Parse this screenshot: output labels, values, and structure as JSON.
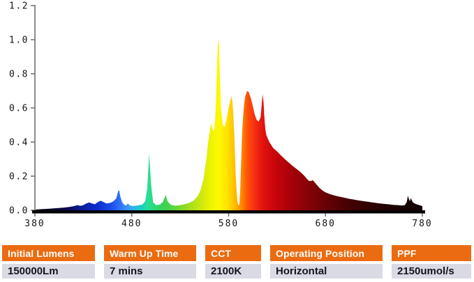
{
  "chart_data": {
    "type": "area",
    "title": "",
    "xlabel": "",
    "ylabel": "",
    "xlim": [
      380,
      780
    ],
    "ylim": [
      0,
      1.2
    ],
    "grid": false,
    "legend": false,
    "x_ticks": [
      "380",
      "480",
      "580",
      "680",
      "780"
    ],
    "y_ticks": [
      "0.0",
      "0.2",
      "0.4",
      "0.6",
      "0.8",
      "1.0",
      "1.2"
    ],
    "points": [
      [
        380,
        0.004
      ],
      [
        388,
        0.007
      ],
      [
        396,
        0.01
      ],
      [
        404,
        0.013
      ],
      [
        410,
        0.016
      ],
      [
        416,
        0.02
      ],
      [
        420,
        0.024
      ],
      [
        424,
        0.03
      ],
      [
        427,
        0.026
      ],
      [
        430,
        0.03
      ],
      [
        433,
        0.04
      ],
      [
        436,
        0.046
      ],
      [
        439,
        0.04
      ],
      [
        442,
        0.036
      ],
      [
        445,
        0.048
      ],
      [
        448,
        0.056
      ],
      [
        451,
        0.048
      ],
      [
        454,
        0.04
      ],
      [
        458,
        0.044
      ],
      [
        461,
        0.052
      ],
      [
        464,
        0.07
      ],
      [
        466,
        0.112
      ],
      [
        467,
        0.118
      ],
      [
        468,
        0.085
      ],
      [
        470,
        0.048
      ],
      [
        472,
        0.034
      ],
      [
        474,
        0.028
      ],
      [
        476,
        0.04
      ],
      [
        478,
        0.028
      ],
      [
        481,
        0.025
      ],
      [
        486,
        0.028
      ],
      [
        491,
        0.034
      ],
      [
        494,
        0.055
      ],
      [
        496,
        0.13
      ],
      [
        498,
        0.33
      ],
      [
        500,
        0.15
      ],
      [
        502,
        0.048
      ],
      [
        505,
        0.03
      ],
      [
        509,
        0.034
      ],
      [
        512,
        0.048
      ],
      [
        514,
        0.075
      ],
      [
        515,
        0.09
      ],
      [
        517,
        0.052
      ],
      [
        520,
        0.034
      ],
      [
        524,
        0.027
      ],
      [
        529,
        0.029
      ],
      [
        534,
        0.035
      ],
      [
        539,
        0.043
      ],
      [
        544,
        0.057
      ],
      [
        548,
        0.083
      ],
      [
        551,
        0.118
      ],
      [
        554,
        0.182
      ],
      [
        557,
        0.3
      ],
      [
        559,
        0.405
      ],
      [
        561,
        0.48
      ],
      [
        562,
        0.51
      ],
      [
        563,
        0.49
      ],
      [
        564,
        0.468
      ],
      [
        565,
        0.47
      ],
      [
        566,
        0.52
      ],
      [
        567,
        0.65
      ],
      [
        568,
        0.85
      ],
      [
        569,
        1.0
      ],
      [
        570,
        0.965
      ],
      [
        571,
        0.78
      ],
      [
        572,
        0.6
      ],
      [
        574,
        0.5
      ],
      [
        576,
        0.488
      ],
      [
        578,
        0.54
      ],
      [
        580,
        0.6
      ],
      [
        582,
        0.65
      ],
      [
        583,
        0.668
      ],
      [
        584,
        0.63
      ],
      [
        585,
        0.545
      ],
      [
        586,
        0.42
      ],
      [
        587,
        0.25
      ],
      [
        588,
        0.13
      ],
      [
        589,
        0.05
      ],
      [
        590,
        0.03
      ],
      [
        591,
        0.032
      ],
      [
        592,
        0.12
      ],
      [
        593,
        0.3
      ],
      [
        594,
        0.46
      ],
      [
        595,
        0.55
      ],
      [
        596,
        0.62
      ],
      [
        597,
        0.665
      ],
      [
        599,
        0.7
      ],
      [
        601,
        0.69
      ],
      [
        603,
        0.655
      ],
      [
        605,
        0.61
      ],
      [
        607,
        0.56
      ],
      [
        609,
        0.53
      ],
      [
        611,
        0.52
      ],
      [
        613,
        0.545
      ],
      [
        614,
        0.61
      ],
      [
        615,
        0.68
      ],
      [
        616,
        0.64
      ],
      [
        617,
        0.54
      ],
      [
        618,
        0.47
      ],
      [
        619,
        0.44
      ],
      [
        622,
        0.4
      ],
      [
        626,
        0.365
      ],
      [
        630,
        0.345
      ],
      [
        634,
        0.322
      ],
      [
        638,
        0.3
      ],
      [
        642,
        0.28
      ],
      [
        646,
        0.26
      ],
      [
        650,
        0.243
      ],
      [
        654,
        0.225
      ],
      [
        658,
        0.203
      ],
      [
        661,
        0.183
      ],
      [
        663,
        0.172
      ],
      [
        665,
        0.172
      ],
      [
        667,
        0.176
      ],
      [
        669,
        0.163
      ],
      [
        671,
        0.149
      ],
      [
        674,
        0.13
      ],
      [
        677,
        0.115
      ],
      [
        680,
        0.105
      ],
      [
        684,
        0.096
      ],
      [
        688,
        0.089
      ],
      [
        692,
        0.083
      ],
      [
        696,
        0.078
      ],
      [
        700,
        0.073
      ],
      [
        705,
        0.067
      ],
      [
        710,
        0.062
      ],
      [
        715,
        0.057
      ],
      [
        720,
        0.053
      ],
      [
        725,
        0.049
      ],
      [
        730,
        0.045
      ],
      [
        735,
        0.041
      ],
      [
        740,
        0.038
      ],
      [
        745,
        0.035
      ],
      [
        750,
        0.032
      ],
      [
        755,
        0.03
      ],
      [
        759,
        0.028
      ],
      [
        762,
        0.03
      ],
      [
        764,
        0.05
      ],
      [
        765,
        0.085
      ],
      [
        766,
        0.068
      ],
      [
        767,
        0.052
      ],
      [
        768,
        0.072
      ],
      [
        770,
        0.048
      ],
      [
        772,
        0.04
      ],
      [
        775,
        0.033
      ],
      [
        778,
        0.028
      ],
      [
        780,
        0.024
      ]
    ],
    "spectrum_colors": [
      [
        380,
        "#04041a"
      ],
      [
        400,
        "#06062e"
      ],
      [
        415,
        "#0a0a55"
      ],
      [
        430,
        "#0b1fa0"
      ],
      [
        445,
        "#0d2fd0"
      ],
      [
        458,
        "#1a4ae8"
      ],
      [
        466,
        "#2b6af5"
      ],
      [
        474,
        "#3f8df8"
      ],
      [
        482,
        "#2fb4e8"
      ],
      [
        490,
        "#18cfc0"
      ],
      [
        497,
        "#27df96"
      ],
      [
        503,
        "#2ed878"
      ],
      [
        510,
        "#33d45e"
      ],
      [
        518,
        "#46d348"
      ],
      [
        528,
        "#71d832"
      ],
      [
        540,
        "#a5de1c"
      ],
      [
        552,
        "#cfe90d"
      ],
      [
        562,
        "#eff400"
      ],
      [
        570,
        "#fdf900"
      ],
      [
        578,
        "#ffe400"
      ],
      [
        585,
        "#ffc400"
      ],
      [
        590,
        "#ffa300"
      ],
      [
        595,
        "#ff7a00"
      ],
      [
        600,
        "#ff4d0a"
      ],
      [
        606,
        "#f63312"
      ],
      [
        612,
        "#ea1c10"
      ],
      [
        618,
        "#dc0f0e"
      ],
      [
        626,
        "#cb060b"
      ],
      [
        636,
        "#b80309"
      ],
      [
        648,
        "#a00208"
      ],
      [
        660,
        "#8a0207"
      ],
      [
        672,
        "#750206"
      ],
      [
        686,
        "#5e0105"
      ],
      [
        700,
        "#4a0104"
      ],
      [
        716,
        "#380103"
      ],
      [
        732,
        "#2a0102"
      ],
      [
        748,
        "#1f0102"
      ],
      [
        762,
        "#170101"
      ],
      [
        780,
        "#100000"
      ]
    ]
  },
  "axis": {
    "y_axis_color": "#8b8b8b",
    "x_axis_color": "#030303",
    "tick_color": "#6e6e6e",
    "tick_label_color": "#141414"
  },
  "table": {
    "columns": [
      {
        "header": "Initial Lumens",
        "value": "150000Lm"
      },
      {
        "header": "Warm Up Time",
        "value": "7 mins"
      },
      {
        "header": "CCT",
        "value": "2100K"
      },
      {
        "header": "Operating Position",
        "value": "Horizontal"
      },
      {
        "header": "PPF",
        "value": "2150umol/s"
      }
    ],
    "header_bg": "#EB6B10",
    "header_text_color": "#FFFFFF",
    "value_bg": "#D9DAE4",
    "value_text_color": "#14141C"
  }
}
